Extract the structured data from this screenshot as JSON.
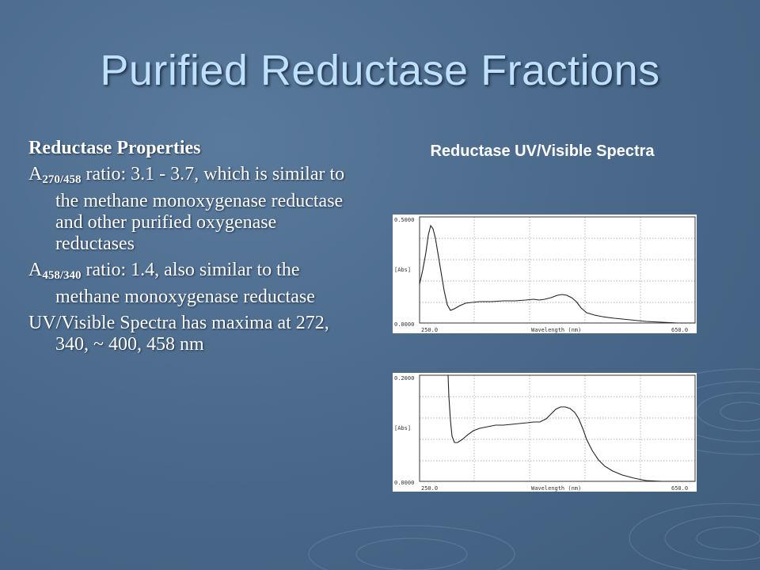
{
  "slide": {
    "title": "Purified Reductase Fractions"
  },
  "left": {
    "heading": "Reductase Properties",
    "items": [
      {
        "prefix": "A",
        "sub": "270/458",
        "text": " ratio: 3.1 - 3.7, which is similar to the methane monoxygenase reductase and other purified oxygenase reductases"
      },
      {
        "prefix": "A",
        "sub": "458/340",
        "text": " ratio: 1.4, also similar to the methane monoxygenase reductase"
      },
      {
        "prefix": "",
        "sub": "",
        "text": "UV/Visible Spectra has maxima at 272, 340, ~ 400, 458 nm"
      }
    ]
  },
  "right": {
    "heading": "Reductase UV/Visible Spectra",
    "spectra": [
      {
        "y_top_label": "0.5000",
        "y_bottom_label": "0.0000",
        "y_axis_label": "[Abs]",
        "x_start_label": "250.0",
        "x_end_label": "650.0",
        "x_axis_label": "Wavelength (nm)"
      },
      {
        "y_top_label": "0.2000",
        "y_bottom_label": "0.0000",
        "y_axis_label": "[Abs]",
        "x_start_label": "250.0",
        "x_end_label": "650.0",
        "x_axis_label": "Wavelength (nm)"
      }
    ]
  }
}
